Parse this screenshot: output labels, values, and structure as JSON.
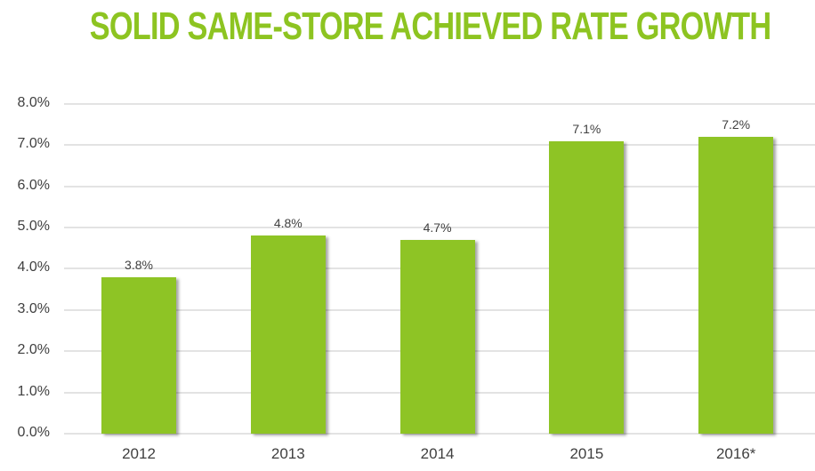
{
  "title": "SOLID SAME-STORE ACHIEVED RATE GROWTH",
  "colors": {
    "title": "#8dc421",
    "bar": "#8ec425",
    "grid": "#e3e3e3",
    "text": "#404040"
  },
  "y_ticks": [
    "0.0%",
    "1.0%",
    "2.0%",
    "3.0%",
    "4.0%",
    "5.0%",
    "6.0%",
    "7.0%",
    "8.0%"
  ],
  "bars": [
    {
      "category": "2012",
      "value": 3.8,
      "label": "3.8%"
    },
    {
      "category": "2013",
      "value": 4.8,
      "label": "4.8%"
    },
    {
      "category": "2014",
      "value": 4.7,
      "label": "4.7%"
    },
    {
      "category": "2015",
      "value": 7.1,
      "label": "7.1%"
    },
    {
      "category": "2016*",
      "value": 7.2,
      "label": "7.2%"
    }
  ],
  "chart_data": {
    "type": "bar",
    "title": "SOLID SAME-STORE ACHIEVED RATE GROWTH",
    "categories": [
      "2012",
      "2013",
      "2014",
      "2015",
      "2016*"
    ],
    "values": [
      3.8,
      4.8,
      4.7,
      7.1,
      7.2
    ],
    "data_labels": [
      "3.8%",
      "4.8%",
      "4.7%",
      "7.1%",
      "7.2%"
    ],
    "xlabel": "",
    "ylabel": "",
    "ylim": [
      0,
      8
    ],
    "y_tick_labels": [
      "0.0%",
      "1.0%",
      "2.0%",
      "3.0%",
      "4.0%",
      "5.0%",
      "6.0%",
      "7.0%",
      "8.0%"
    ],
    "grid": true,
    "legend": null
  }
}
